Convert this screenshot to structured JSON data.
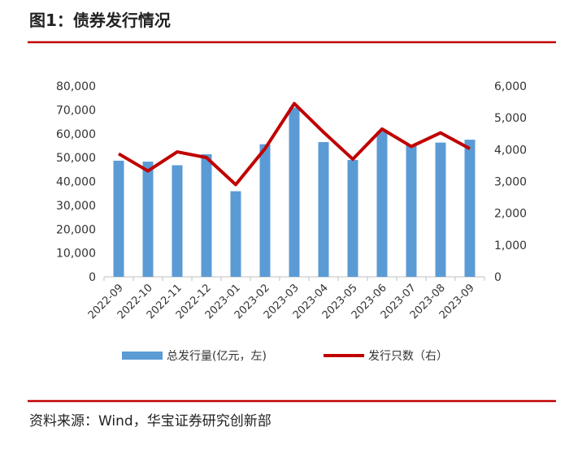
{
  "chart_data": {
    "type": "bar",
    "title": "图1：债券发行情况",
    "source": "资料来源：Wind，华宝证券研究创新部",
    "categories": [
      "2022-09",
      "2022-10",
      "2022-11",
      "2022-12",
      "2023-01",
      "2023-02",
      "2023-03",
      "2023-04",
      "2023-05",
      "2023-06",
      "2023-07",
      "2023-08",
      "2023-09"
    ],
    "series": [
      {
        "name": "总发行量(亿元，左)",
        "type": "bar",
        "color": "#5b9bd5",
        "axis": "y",
        "values": [
          48700,
          48300,
          46800,
          51400,
          35900,
          55600,
          71000,
          56500,
          49000,
          61000,
          55500,
          56300,
          57500
        ]
      },
      {
        "name": "发行只数（右）",
        "type": "line",
        "color": "#c00000",
        "axis": "y2",
        "values": [
          3870,
          3330,
          3930,
          3750,
          2900,
          4030,
          5450,
          4550,
          3700,
          4650,
          4100,
          4530,
          4030
        ]
      }
    ],
    "ylim": [
      0,
      80000
    ],
    "yticks": [
      0,
      {
        "value": 10000,
        "label": "10,000"
      },
      {
        "value": 20000,
        "label": "20,000"
      },
      {
        "value": 30000,
        "label": "30,000"
      },
      {
        "value": 40000,
        "label": "40,000"
      },
      {
        "value": 50000,
        "label": "50,000"
      },
      {
        "value": 60000,
        "label": "60,000"
      },
      {
        "value": 70000,
        "label": "70,000"
      },
      {
        "value": 80000,
        "label": "80,000"
      }
    ],
    "y2lim": [
      0,
      6000
    ],
    "y2ticks": [
      0,
      {
        "value": 1000,
        "label": "1,000"
      },
      {
        "value": 2000,
        "label": "2,000"
      },
      {
        "value": 3000,
        "label": "3,000"
      },
      {
        "value": 4000,
        "label": "4,000"
      },
      {
        "value": 5000,
        "label": "5,000"
      },
      {
        "value": 6000,
        "label": "6,000"
      }
    ],
    "grid": false,
    "legend": "bottom"
  }
}
